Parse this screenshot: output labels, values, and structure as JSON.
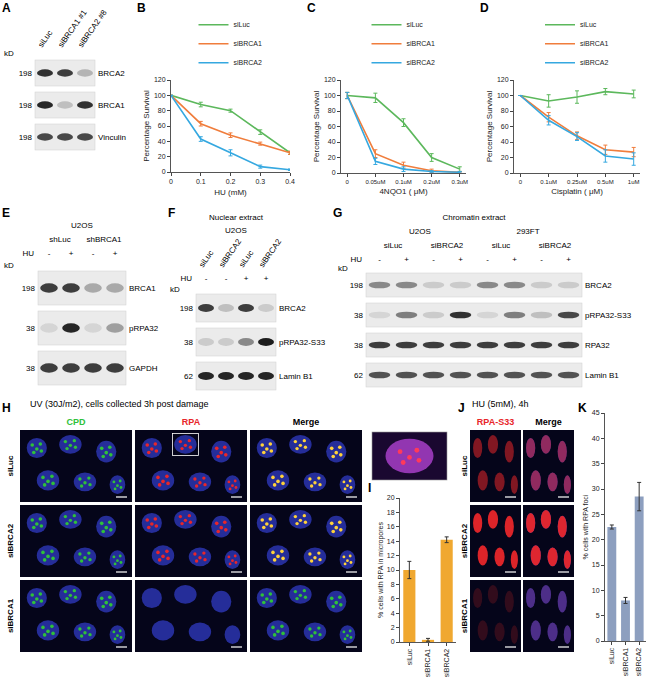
{
  "panel_labels": [
    "A",
    "B",
    "C",
    "D",
    "E",
    "F",
    "G",
    "H",
    "I",
    "J",
    "K"
  ],
  "chart_data": [
    {
      "type": "line",
      "xlabel": "HU (mM)",
      "ylabel": "Percentage Survival",
      "x": [
        0,
        0.1,
        0.2,
        0.3,
        0.4
      ],
      "xlim": [
        0,
        0.4
      ],
      "xticks": [
        0,
        0.1,
        0.2,
        0.3,
        0.4
      ],
      "ylim": [
        0,
        120
      ],
      "yticks": [
        0,
        20,
        40,
        60,
        80,
        100,
        120
      ],
      "grid": false,
      "legend": "top",
      "series": [
        {
          "name": "siLuc",
          "color": "#5cb85c",
          "values": [
            100,
            88,
            80,
            52,
            25
          ],
          "errors": [
            0,
            3,
            2,
            3,
            2
          ]
        },
        {
          "name": "siBRCA1",
          "color": "#f07d3c",
          "values": [
            100,
            63,
            48,
            37,
            25
          ],
          "errors": [
            0,
            3,
            3,
            2,
            2
          ]
        },
        {
          "name": "siBRCA2",
          "color": "#35a8e0",
          "values": [
            100,
            43,
            25,
            7,
            3
          ],
          "errors": [
            0,
            3,
            4,
            2,
            1
          ]
        }
      ]
    },
    {
      "type": "line",
      "xlabel": "4NQO1 ( μM)",
      "ylabel": "Percentage Survival",
      "categories": [
        "0",
        "0.05uM",
        "0.1uM",
        "0.2uM",
        "0.3uM"
      ],
      "ylim": [
        0,
        120
      ],
      "yticks": [
        0,
        20,
        40,
        60,
        80,
        100,
        120
      ],
      "grid": false,
      "legend": "top",
      "series": [
        {
          "name": "siLuc",
          "color": "#5cb85c",
          "values": [
            100,
            97,
            65,
            20,
            5
          ],
          "errors": [
            4,
            6,
            5,
            5,
            3
          ]
        },
        {
          "name": "siBRCA1",
          "color": "#f07d3c",
          "values": [
            100,
            25,
            10,
            3,
            1
          ],
          "errors": [
            4,
            5,
            4,
            2,
            1
          ]
        },
        {
          "name": "siBRCA2",
          "color": "#35a8e0",
          "values": [
            100,
            15,
            5,
            2,
            1
          ],
          "errors": [
            4,
            4,
            3,
            1,
            1
          ]
        }
      ]
    },
    {
      "type": "line",
      "xlabel": "Cisplatin ( μM)",
      "ylabel": "Percentage Survival",
      "categories": [
        "0",
        "0.1uM",
        "0.25uM",
        "0.5uM",
        "1uM"
      ],
      "ylim": [
        0,
        120
      ],
      "yticks": [
        0,
        20,
        40,
        60,
        80,
        100,
        120
      ],
      "grid": false,
      "legend": "top",
      "series": [
        {
          "name": "siLuc",
          "color": "#5cb85c",
          "values": [
            100,
            93,
            98,
            105,
            102
          ],
          "errors": [
            0,
            8,
            8,
            4,
            5
          ]
        },
        {
          "name": "siBRCA1",
          "color": "#f07d3c",
          "values": [
            100,
            72,
            48,
            30,
            27
          ],
          "errors": [
            0,
            6,
            5,
            6,
            6
          ]
        },
        {
          "name": "siBRCA2",
          "color": "#35a8e0",
          "values": [
            100,
            68,
            47,
            22,
            18
          ],
          "errors": [
            0,
            6,
            5,
            8,
            8
          ]
        }
      ]
    },
    {
      "type": "bar",
      "ylabel": "% cells with RPA in micropores",
      "categories": [
        "siLuc",
        "siBRCA1",
        "siBRCA2"
      ],
      "values": [
        10,
        0.3,
        14.2
      ],
      "errors": [
        1.2,
        0.2,
        0.4
      ],
      "color": "#f0a830",
      "ylim": [
        0,
        20
      ],
      "yticks": [
        0,
        2,
        4,
        6,
        8,
        10,
        12,
        14,
        16,
        18,
        20
      ],
      "grid": false
    },
    {
      "type": "bar",
      "ylabel": "% cells with RPA foci",
      "categories": [
        "siLuc",
        "siBRCA1",
        "siBRCA2"
      ],
      "values": [
        22.5,
        8,
        28.5
      ],
      "errors": [
        0.4,
        0.6,
        2.8
      ],
      "color": "#8d9fbf",
      "ylim": [
        0,
        45
      ],
      "yticks": [
        0,
        5,
        10,
        15,
        20,
        25,
        30,
        35,
        40,
        45
      ],
      "grid": false
    }
  ],
  "blots": [
    {
      "unit": "kD",
      "header": [
        {
          "cells": [
            {
              "text": "siLuc",
              "span": 1
            },
            {
              "text": "siBRCA1 #1",
              "span": 1
            },
            {
              "text": "siBRCA2 #8",
              "span": 1
            }
          ]
        }
      ],
      "rows": [
        {
          "name": "BRCA2",
          "marker": 198,
          "levels": [
            0.85,
            0.8,
            0.25
          ]
        },
        {
          "name": "BRCA1",
          "marker": 198,
          "levels": [
            0.9,
            0.2,
            0.85
          ]
        },
        {
          "name": "Vinculin",
          "marker": 198,
          "levels": [
            0.75,
            0.75,
            0.75
          ]
        }
      ]
    },
    {
      "unit": "kD",
      "header": [
        {
          "cells": [
            {
              "text": "U2OS",
              "span": 4
            }
          ]
        },
        {
          "cells": [
            {
              "text": "shLuc",
              "span": 2
            },
            {
              "text": "shBRCA1",
              "span": 2
            }
          ]
        },
        {
          "label": "HU",
          "cells": [
            {
              "text": "-",
              "span": 1
            },
            {
              "text": "+",
              "span": 1
            },
            {
              "text": "-",
              "span": 1
            },
            {
              "text": "+",
              "span": 1
            }
          ]
        }
      ],
      "rows": [
        {
          "name": "BRCA1",
          "marker": 198,
          "levels": [
            0.8,
            0.8,
            0.3,
            0.3
          ]
        },
        {
          "name": "pRPA32",
          "marker": 38,
          "levels": [
            0.1,
            0.9,
            0.1,
            0.35
          ]
        },
        {
          "name": "GAPDH",
          "marker": 38,
          "levels": [
            0.8,
            0.8,
            0.8,
            0.8
          ]
        }
      ]
    },
    {
      "unit": "kD",
      "header": [
        {
          "cells": [
            {
              "text": "Nuclear extract",
              "span": 4
            }
          ]
        },
        {
          "cells": [
            {
              "text": "U2OS",
              "span": 4
            }
          ]
        },
        {
          "cells": [
            {
              "text": "siLuc",
              "span": 1
            },
            {
              "text": "siBRCA2",
              "span": 1
            },
            {
              "text": "siLuc",
              "span": 1
            },
            {
              "text": "siBRCA2",
              "span": 1
            }
          ]
        },
        {
          "label": "HU",
          "cells": [
            {
              "text": "-",
              "span": 1
            },
            {
              "text": "-",
              "span": 1
            },
            {
              "text": "+",
              "span": 1
            },
            {
              "text": "+",
              "span": 1
            }
          ]
        }
      ],
      "rows": [
        {
          "name": "BRCA2",
          "marker": 198,
          "levels": [
            0.8,
            0.2,
            0.8,
            0.15
          ]
        },
        {
          "name": "pRPA32-S33",
          "marker": 38,
          "levels": [
            0.15,
            0.15,
            0.45,
            0.95
          ]
        },
        {
          "name": "Lamin B1",
          "marker": 62,
          "levels": [
            0.9,
            0.9,
            0.9,
            0.9
          ]
        }
      ]
    },
    {
      "unit": "kD",
      "header": [
        {
          "cells": [
            {
              "text": "Chromatin extract",
              "span": 8
            }
          ]
        },
        {
          "cells": [
            {
              "text": "U2OS",
              "span": 4
            },
            {
              "text": "293FT",
              "span": 4
            }
          ]
        },
        {
          "cells": [
            {
              "text": "siLuc",
              "span": 2
            },
            {
              "text": "siBRCA2",
              "span": 2
            },
            {
              "text": "siLuc",
              "span": 2
            },
            {
              "text": "siBRCA2",
              "span": 2
            }
          ]
        },
        {
          "label": "HU",
          "cells": [
            {
              "text": "-",
              "span": 1
            },
            {
              "text": "+",
              "span": 1
            },
            {
              "text": "-",
              "span": 1
            },
            {
              "text": "+",
              "span": 1
            },
            {
              "text": "-",
              "span": 1
            },
            {
              "text": "+",
              "span": 1
            },
            {
              "text": "-",
              "span": 1
            },
            {
              "text": "+",
              "span": 1
            }
          ]
        }
      ],
      "rows": [
        {
          "name": "BRCA2",
          "marker": 198,
          "levels": [
            0.45,
            0.45,
            0.15,
            0.15,
            0.45,
            0.45,
            0.15,
            0.15
          ]
        },
        {
          "name": "pRPA32-S33",
          "marker": 38,
          "levels": [
            0.1,
            0.5,
            0.15,
            0.85,
            0.1,
            0.5,
            0.2,
            0.75
          ]
        },
        {
          "name": "RPA32",
          "marker": 38,
          "levels": [
            0.8,
            0.8,
            0.8,
            0.8,
            0.8,
            0.8,
            0.8,
            0.8
          ]
        },
        {
          "name": "Lamin B1",
          "marker": 62,
          "levels": [
            0.7,
            0.7,
            0.7,
            0.7,
            0.7,
            0.7,
            0.7,
            0.7
          ]
        }
      ]
    }
  ],
  "micrographs": [
    {
      "title": "UV (30J/m2), cells collected 3h post damage",
      "columns": [
        {
          "text": "CPD",
          "color": "#2fc13a"
        },
        {
          "text": "RPA",
          "color": "#e8262a"
        },
        {
          "text": "Merge",
          "color": "#000000"
        }
      ],
      "rows": [
        {
          "name": "siLuc",
          "foci": [
            true,
            true
          ]
        },
        {
          "name": "siBRCA2",
          "foci": [
            true,
            true
          ]
        },
        {
          "name": "siBRCA1",
          "foci": [
            true,
            false
          ]
        }
      ]
    },
    {
      "title": "HU (5mM), 4h",
      "columns": [
        {
          "text": "RPA-S33",
          "color": "#e8262a"
        },
        {
          "text": "Merge",
          "color": "#000000"
        }
      ],
      "rows": [
        {
          "name": "siLuc",
          "levels": [
            0.55
          ]
        },
        {
          "name": "siBRCA2",
          "levels": [
            0.95
          ]
        },
        {
          "name": "siBRCA1",
          "levels": [
            0.2
          ]
        }
      ]
    }
  ]
}
